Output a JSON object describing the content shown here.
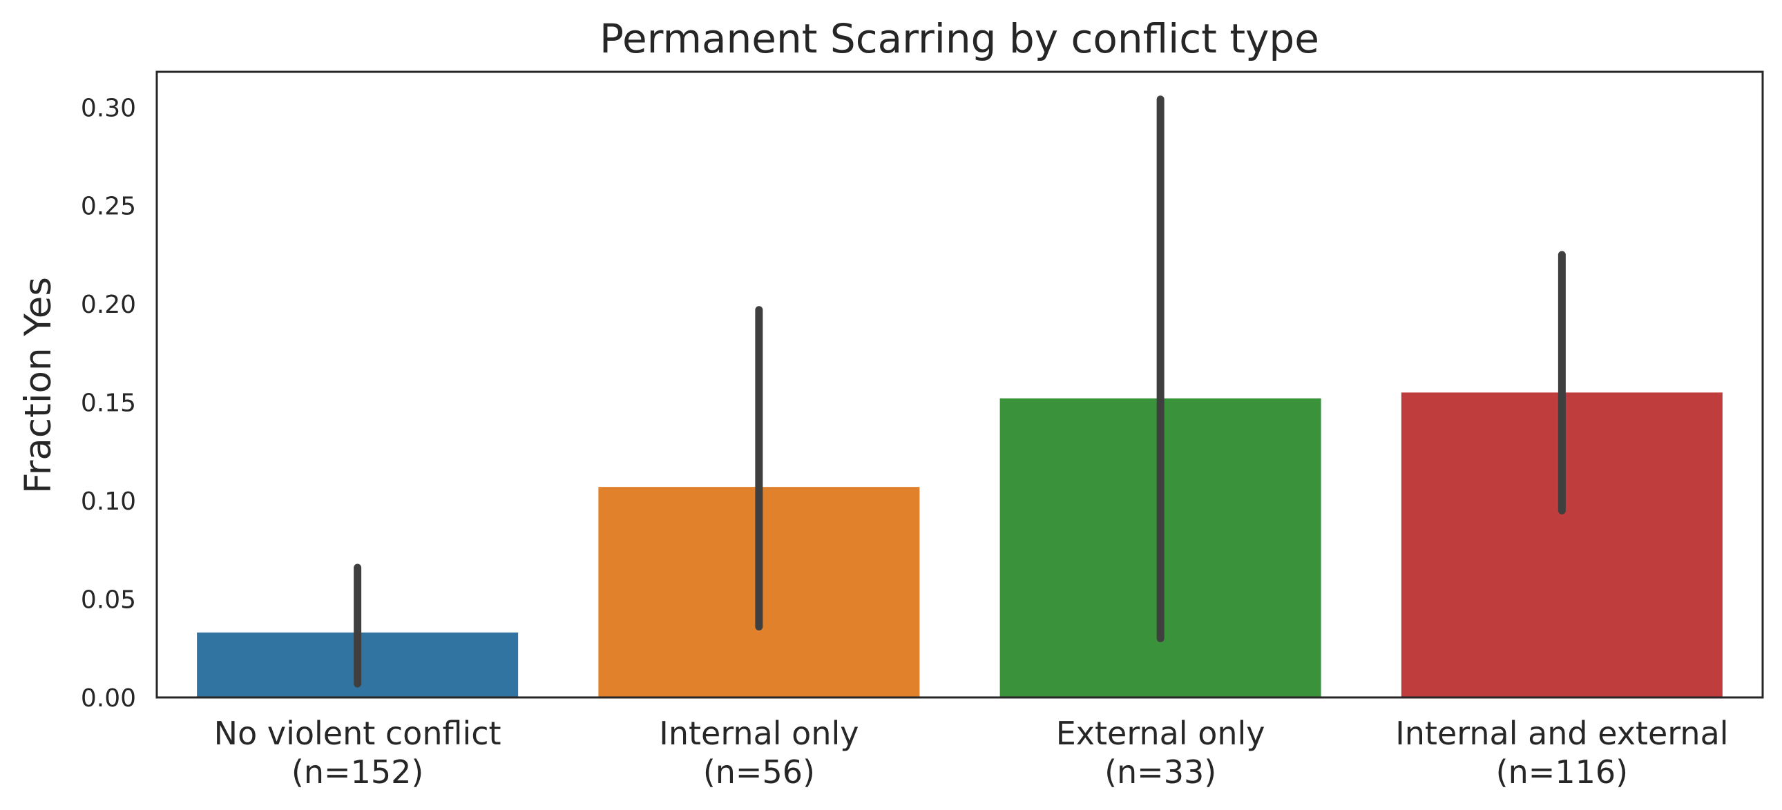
{
  "chart_data": {
    "type": "bar",
    "title": "Permanent Scarring by conflict type",
    "xlabel": "",
    "ylabel": "Fraction Yes",
    "ylim": [
      0,
      0.318
    ],
    "yticks": [
      "0.00",
      "0.05",
      "0.10",
      "0.15",
      "0.20",
      "0.25",
      "0.30"
    ],
    "categories": [
      [
        "No violent conflict",
        "(n=152)"
      ],
      [
        "Internal only",
        "(n=56)"
      ],
      [
        "External only",
        "(n=33)"
      ],
      [
        "Internal and external",
        "(n=116)"
      ]
    ],
    "values": [
      0.033,
      0.107,
      0.152,
      0.155
    ],
    "error_bars": [
      [
        0.007,
        0.066
      ],
      [
        0.036,
        0.197
      ],
      [
        0.03,
        0.304
      ],
      [
        0.095,
        0.225
      ]
    ],
    "colors": [
      "#3274a1",
      "#e1812c",
      "#3a923a",
      "#c03d3e"
    ],
    "error_color": "#3f3f3f",
    "grid": false,
    "legend": "none"
  }
}
